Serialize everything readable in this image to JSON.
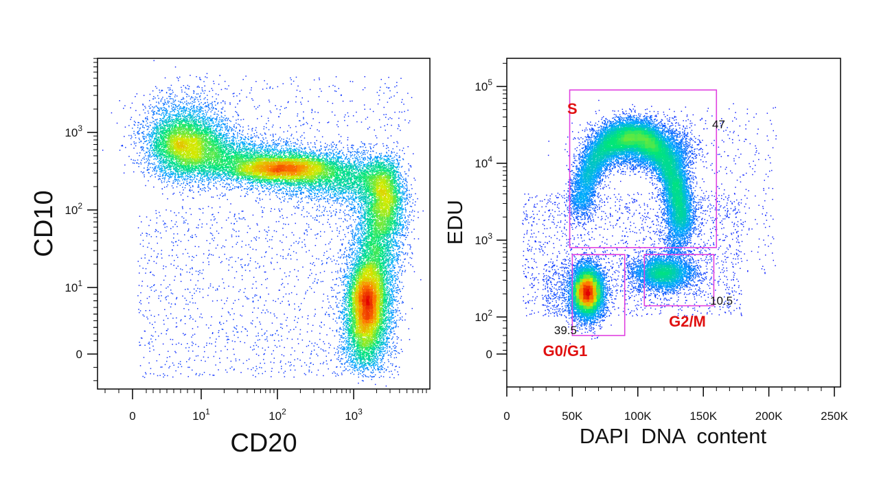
{
  "colors": {
    "gate": "#e040e0",
    "gate_label": "#e01010",
    "density_low": "#1a1aff",
    "density_high": "#e00000"
  },
  "chart_data": [
    {
      "type": "scatter",
      "subtype": "flow-cytometry-density",
      "xlabel": "CD20",
      "ylabel": "CD10",
      "x_scale": "biexponential",
      "y_scale": "biexponential",
      "x_ticks": [
        {
          "value": 0,
          "label": "0"
        },
        {
          "value": 10,
          "label": "10",
          "exp": "1"
        },
        {
          "value": 100,
          "label": "10",
          "exp": "2"
        },
        {
          "value": 1000,
          "label": "10",
          "exp": "3"
        }
      ],
      "y_ticks": [
        {
          "value": 0,
          "label": "0"
        },
        {
          "value": 10,
          "label": "10",
          "exp": "1"
        },
        {
          "value": 100,
          "label": "10",
          "exp": "2"
        },
        {
          "value": 1000,
          "label": "10",
          "exp": "3"
        }
      ],
      "populations": [
        {
          "description": "CD10 high CD20 low-intermediate",
          "cd20_range": [
            3,
            300
          ],
          "cd10_center": 600
        },
        {
          "description": "CD10 intermediate CD20 intermediate",
          "cd20_center": 120,
          "cd10_center": 320
        },
        {
          "description": "CD10 low CD20 high",
          "cd20_center": 1300,
          "cd10_range": [
            0,
            50
          ]
        }
      ],
      "grid": false
    },
    {
      "type": "scatter",
      "subtype": "flow-cytometry-density",
      "xlabel": "DAPI  DNA  content",
      "ylabel": "EDU",
      "x_scale": "linear",
      "y_scale": "biexponential",
      "x_ticks": [
        {
          "value": 0,
          "label": "0"
        },
        {
          "value": 50000,
          "label": "50K"
        },
        {
          "value": 100000,
          "label": "100K"
        },
        {
          "value": 150000,
          "label": "150K"
        },
        {
          "value": 200000,
          "label": "200K"
        },
        {
          "value": 250000,
          "label": "250K"
        }
      ],
      "y_ticks": [
        {
          "value": 0,
          "label": "0"
        },
        {
          "value": 100,
          "label": "10",
          "exp": "2"
        },
        {
          "value": 1000,
          "label": "10",
          "exp": "3"
        },
        {
          "value": 10000,
          "label": "10",
          "exp": "4"
        },
        {
          "value": 100000,
          "label": "10",
          "exp": "5"
        }
      ],
      "gates": [
        {
          "name": "S",
          "percent": "47",
          "x_range": [
            48000,
            160000
          ],
          "y_range": [
            800,
            90000
          ]
        },
        {
          "name": "G0/G1",
          "percent": "39.5",
          "x_range": [
            50000,
            90000
          ],
          "y_range": [
            50,
            650
          ]
        },
        {
          "name": "G2/M",
          "percent": "10.5",
          "x_range": [
            105000,
            158000
          ],
          "y_range": [
            140,
            650
          ]
        }
      ],
      "grid": false
    }
  ]
}
